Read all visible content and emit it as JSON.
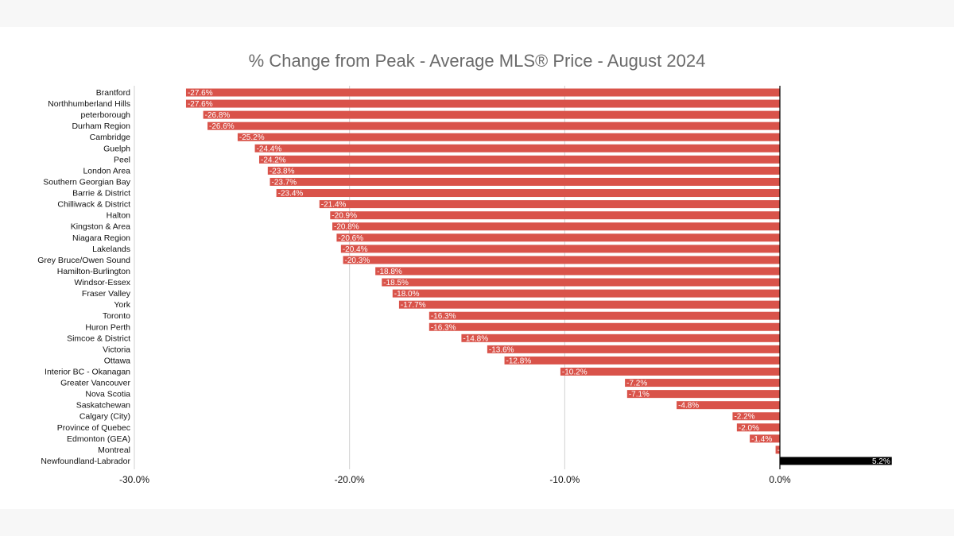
{
  "chart_data": {
    "type": "bar",
    "orientation": "horizontal",
    "title": "% Change from Peak - Average MLS® Price - August 2024",
    "xlabel": "",
    "ylabel": "",
    "xlim": [
      -30,
      0
    ],
    "x_ticks": [
      "-30.0%",
      "-20.0%",
      "-10.0%",
      "0.0%"
    ],
    "grid": true,
    "legend": "none",
    "categories": [
      "Brantford",
      "Northhumberland Hills",
      "peterborough",
      "Durham Region",
      "Cambridge",
      "Guelph",
      "Peel",
      "London Area",
      "Southern Georgian Bay",
      "Barrie & District",
      "Chilliwack & District",
      "Halton",
      "Kingston & Area",
      "Niagara Region",
      "Lakelands",
      "Grey Bruce/Owen Sound",
      "Hamilton-Burlington",
      "Windsor-Essex",
      "Fraser Valley",
      "York",
      "Toronto",
      "Huron Perth",
      "Simcoe & District",
      "Victoria",
      "Ottawa",
      "Interior BC - Okanagan",
      "Greater Vancouver",
      "Nova Scotia",
      "Saskatchewan",
      "Calgary (City)",
      "Province of Quebec",
      "Edmonton (GEA)",
      "Montreal",
      "Newfoundland-Labrador"
    ],
    "values": [
      -27.6,
      -27.6,
      -26.8,
      -26.6,
      -25.2,
      -24.4,
      -24.2,
      -23.8,
      -23.7,
      -23.4,
      -21.4,
      -20.9,
      -20.8,
      -20.6,
      -20.4,
      -20.3,
      -18.8,
      -18.5,
      -18.0,
      -17.7,
      -16.3,
      -16.3,
      -14.8,
      -13.6,
      -12.8,
      -10.2,
      -7.2,
      -7.1,
      -4.8,
      -2.2,
      -2.0,
      -1.4,
      -0.2,
      5.2
    ],
    "data_labels": [
      "-27.6%",
      "-27.6%",
      "-26.8%",
      "-26.6%",
      "-25.2%",
      "-24.4%",
      "-24.2%",
      "-23.8%",
      "-23.7%",
      "-23.4%",
      "-21.4%",
      "-20.9%",
      "-20.8%",
      "-20.6%",
      "-20.4%",
      "-20.3%",
      "-18.8%",
      "-18.5%",
      "-18.0%",
      "-17.7%",
      "-16.3%",
      "-16.3%",
      "-14.8%",
      "-13.6%",
      "-12.8%",
      "-10.2%",
      "-7.2%",
      "-7.1%",
      "-4.8%",
      "-2.2%",
      "-2.0%",
      "-1.4%",
      "-0.2%",
      "5.2%"
    ],
    "colors": {
      "negative": "#d9534a",
      "positive": "#000000",
      "grid": "#d0d0d0",
      "zero_line": "#000000"
    }
  }
}
